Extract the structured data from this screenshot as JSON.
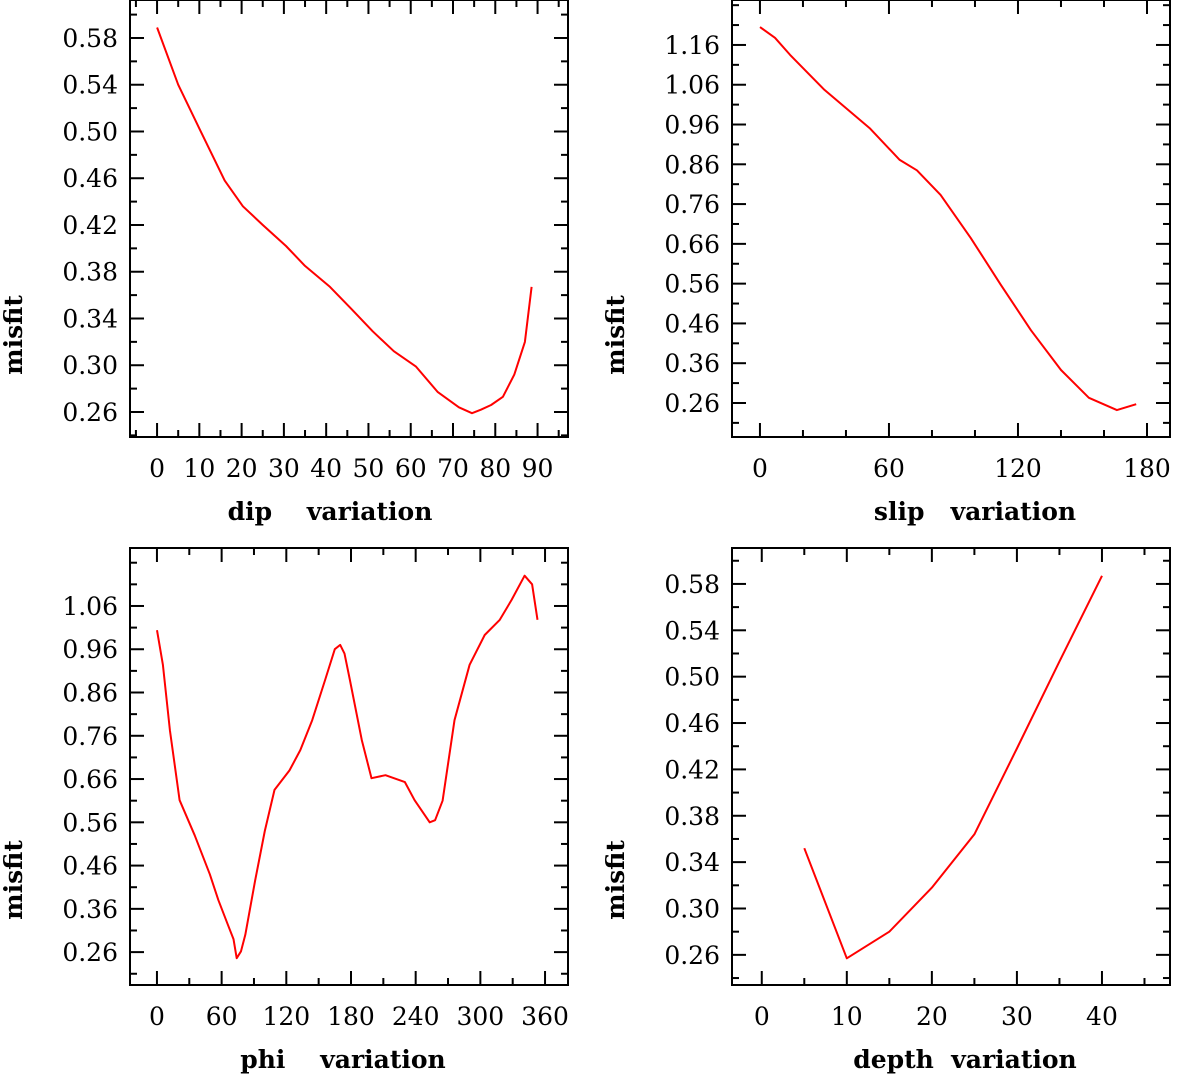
{
  "chart_data": [
    {
      "type": "line",
      "title": "",
      "xlabel": "dip    variation",
      "ylabel": "misfit",
      "xlim": [
        -6.4,
        97.2
      ],
      "ylim": [
        0.2386,
        0.6125
      ],
      "xticks": [
        0,
        10,
        20,
        30,
        40,
        50,
        60,
        70,
        80,
        90
      ],
      "xtick_labels": [
        "0",
        "10",
        "20",
        "30",
        "40",
        "50",
        "60",
        "70",
        "80",
        "90"
      ],
      "x_minor_step": 5,
      "yticks": [
        0.26,
        0.3,
        0.34,
        0.38,
        0.42,
        0.46,
        0.5,
        0.54,
        0.58
      ],
      "ytick_labels": [
        "0.26",
        "0.30",
        "0.34",
        "0.38",
        "0.42",
        "0.46",
        "0.50",
        "0.54",
        "0.58"
      ],
      "y_minor_step": 0.02,
      "grid": false,
      "color": "#ff0000",
      "x": [
        0,
        5,
        10.2,
        16,
        20.3,
        25,
        30.5,
        35,
        40.9,
        46,
        51,
        56,
        61.2,
        66.4,
        71.4,
        74.5,
        76.6,
        79,
        81.8,
        84.5,
        87,
        88.6
      ],
      "y": [
        0.589,
        0.54,
        0.501,
        0.458,
        0.436,
        0.42,
        0.402,
        0.385,
        0.367,
        0.348,
        0.329,
        0.312,
        0.299,
        0.277,
        0.264,
        0.259,
        0.262,
        0.266,
        0.273,
        0.292,
        0.32,
        0.367
      ]
    },
    {
      "type": "line",
      "title": "",
      "xlabel": "slip   variation",
      "ylabel": "misfit",
      "xlim": [
        -13,
        190.7
      ],
      "ylim": [
        0.1745,
        1.273
      ],
      "xticks": [
        0,
        60,
        120,
        180
      ],
      "xtick_labels": [
        "0",
        "60",
        "120",
        "180"
      ],
      "x_minor_step": 20,
      "yticks": [
        0.26,
        0.36,
        0.46,
        0.56,
        0.66,
        0.76,
        0.86,
        0.96,
        1.06,
        1.16
      ],
      "ytick_labels": [
        "0.26",
        "0.36",
        "0.46",
        "0.56",
        "0.66",
        "0.76",
        "0.86",
        "0.96",
        "1.06",
        "1.16"
      ],
      "y_minor_step": 0.05,
      "grid": false,
      "color": "#ff0000",
      "x": [
        0,
        7,
        14,
        30,
        51,
        65,
        73,
        84,
        98,
        112,
        126,
        140,
        153,
        166,
        175
      ],
      "y": [
        1.205,
        1.178,
        1.135,
        1.047,
        0.951,
        0.871,
        0.845,
        0.783,
        0.675,
        0.557,
        0.443,
        0.343,
        0.273,
        0.242,
        0.257
      ]
    },
    {
      "type": "line",
      "title": "",
      "xlabel": "phi    variation",
      "ylabel": "misfit",
      "xlim": [
        -25,
        381.3
      ],
      "ylim": [
        0.184,
        1.194
      ],
      "xticks": [
        0,
        60,
        120,
        180,
        240,
        300,
        360
      ],
      "xtick_labels": [
        "0",
        "60",
        "120",
        "180",
        "240",
        "300",
        "360"
      ],
      "x_minor_step": 30,
      "yticks": [
        0.26,
        0.36,
        0.46,
        0.56,
        0.66,
        0.76,
        0.86,
        0.96,
        1.06
      ],
      "ytick_labels": [
        "0.26",
        "0.36",
        "0.46",
        "0.56",
        "0.66",
        "0.76",
        "0.86",
        "0.96",
        "1.06"
      ],
      "y_minor_step": 0.05,
      "grid": false,
      "color": "#ff0000",
      "x": [
        0,
        5.5,
        12,
        21,
        35,
        49,
        57,
        66,
        71,
        74,
        78,
        82,
        91,
        100,
        109,
        123,
        133,
        144,
        156,
        165,
        170,
        174,
        179,
        190,
        199,
        212,
        230,
        239,
        253,
        258,
        265,
        276,
        290,
        304,
        318,
        329,
        341,
        348,
        353
      ],
      "y": [
        1.004,
        0.924,
        0.773,
        0.611,
        0.53,
        0.44,
        0.38,
        0.322,
        0.29,
        0.246,
        0.262,
        0.3,
        0.425,
        0.54,
        0.635,
        0.68,
        0.727,
        0.796,
        0.889,
        0.96,
        0.97,
        0.95,
        0.889,
        0.75,
        0.662,
        0.669,
        0.653,
        0.611,
        0.56,
        0.565,
        0.61,
        0.796,
        0.924,
        0.993,
        1.028,
        1.074,
        1.13,
        1.11,
        1.028
      ]
    },
    {
      "type": "line",
      "title": "",
      "xlabel": "depth  variation",
      "ylabel": "misfit",
      "xlim": [
        -3.5,
        48
      ],
      "ylim": [
        0.234,
        0.611
      ],
      "xticks": [
        0,
        10,
        20,
        30,
        40
      ],
      "xtick_labels": [
        "0",
        "10",
        "20",
        "30",
        "40"
      ],
      "x_minor_step": 5,
      "yticks": [
        0.26,
        0.3,
        0.34,
        0.38,
        0.42,
        0.46,
        0.5,
        0.54,
        0.58
      ],
      "ytick_labels": [
        "0.26",
        "0.30",
        "0.34",
        "0.38",
        "0.42",
        "0.46",
        "0.50",
        "0.54",
        "0.58"
      ],
      "y_minor_step": 0.02,
      "grid": false,
      "color": "#ff0000",
      "x": [
        5,
        10,
        15,
        20,
        25,
        30,
        35,
        40
      ],
      "y": [
        0.352,
        0.257,
        0.28,
        0.318,
        0.364,
        0.438,
        0.513,
        0.587
      ]
    }
  ]
}
